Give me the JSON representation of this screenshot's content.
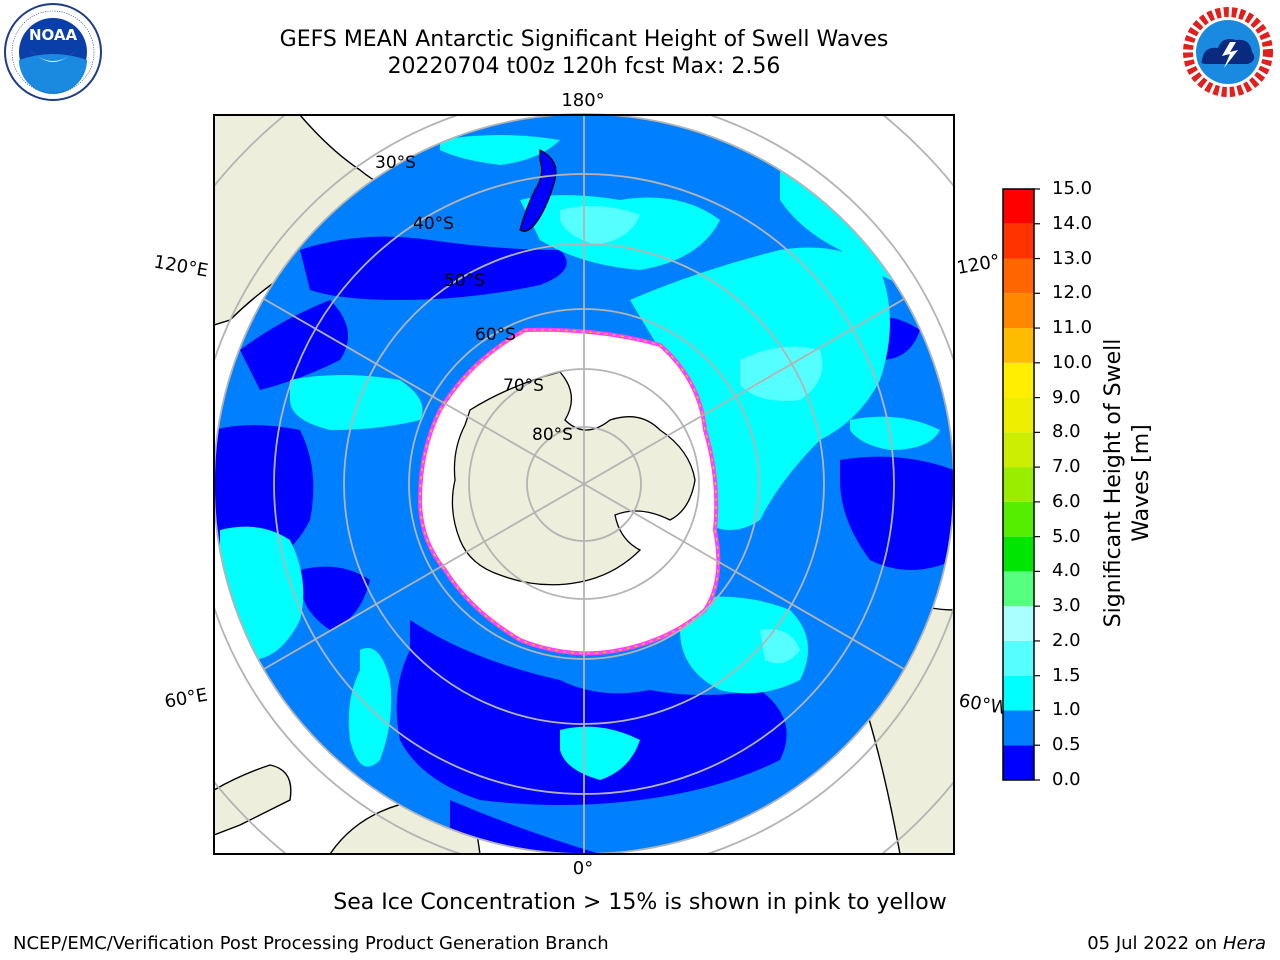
{
  "title": {
    "line1": "GEFS MEAN Antarctic Significant Height of Swell Waves",
    "line2": "20220704 t00z 120h fcst   Max: 2.56"
  },
  "logos": {
    "noaa": {
      "text": "NOAA",
      "ring_text": "NATIONAL OCEANIC AND ATMOSPHERIC ADMINISTRATION · U.S. DEPARTMENT OF COMMERCE"
    },
    "nws": {
      "ring_text": "NATIONAL WEATHER SERVICE"
    }
  },
  "map": {
    "projection": "south-polar-stereographic",
    "latitude_labels": [
      "30°S",
      "40°S",
      "50°S",
      "60°S",
      "70°S",
      "80°S"
    ],
    "longitude_labels": {
      "top": "180°",
      "bottom": "0°",
      "left_upper": "120°E",
      "left_lower": "60°E",
      "right_upper": "120°",
      "right_lower": "60°W"
    },
    "colors": {
      "land": "#eeeedc",
      "ice": "#ffffff",
      "coast": "#000000",
      "grid": "#b4b4b4",
      "ice_edge": "#ff40ff"
    }
  },
  "colorbar": {
    "label": "Significant Height of Swell Waves [m]",
    "ticks": [
      "0.0",
      "0.5",
      "1.0",
      "1.5",
      "2.0",
      "3.0",
      "4.0",
      "5.0",
      "6.0",
      "7.0",
      "8.0",
      "9.0",
      "10.0",
      "11.0",
      "12.0",
      "13.0",
      "14.0",
      "15.0"
    ],
    "colors": [
      "#0000ff",
      "#0080ff",
      "#00ffff",
      "#55ffff",
      "#aaffff",
      "#55ff80",
      "#00e600",
      "#55ee00",
      "#99ee00",
      "#ccee00",
      "#eeee00",
      "#ffee00",
      "#ffbb00",
      "#ff8800",
      "#ff6600",
      "#ff3300",
      "#ff0000"
    ]
  },
  "footnote": "Sea Ice Concentration > 15% is shown in pink to yellow",
  "credit": "NCEP/EMC/Verification Post Processing Product Generation Branch",
  "stamp": {
    "date": "05 Jul 2022 on",
    "machine": "Hera"
  }
}
